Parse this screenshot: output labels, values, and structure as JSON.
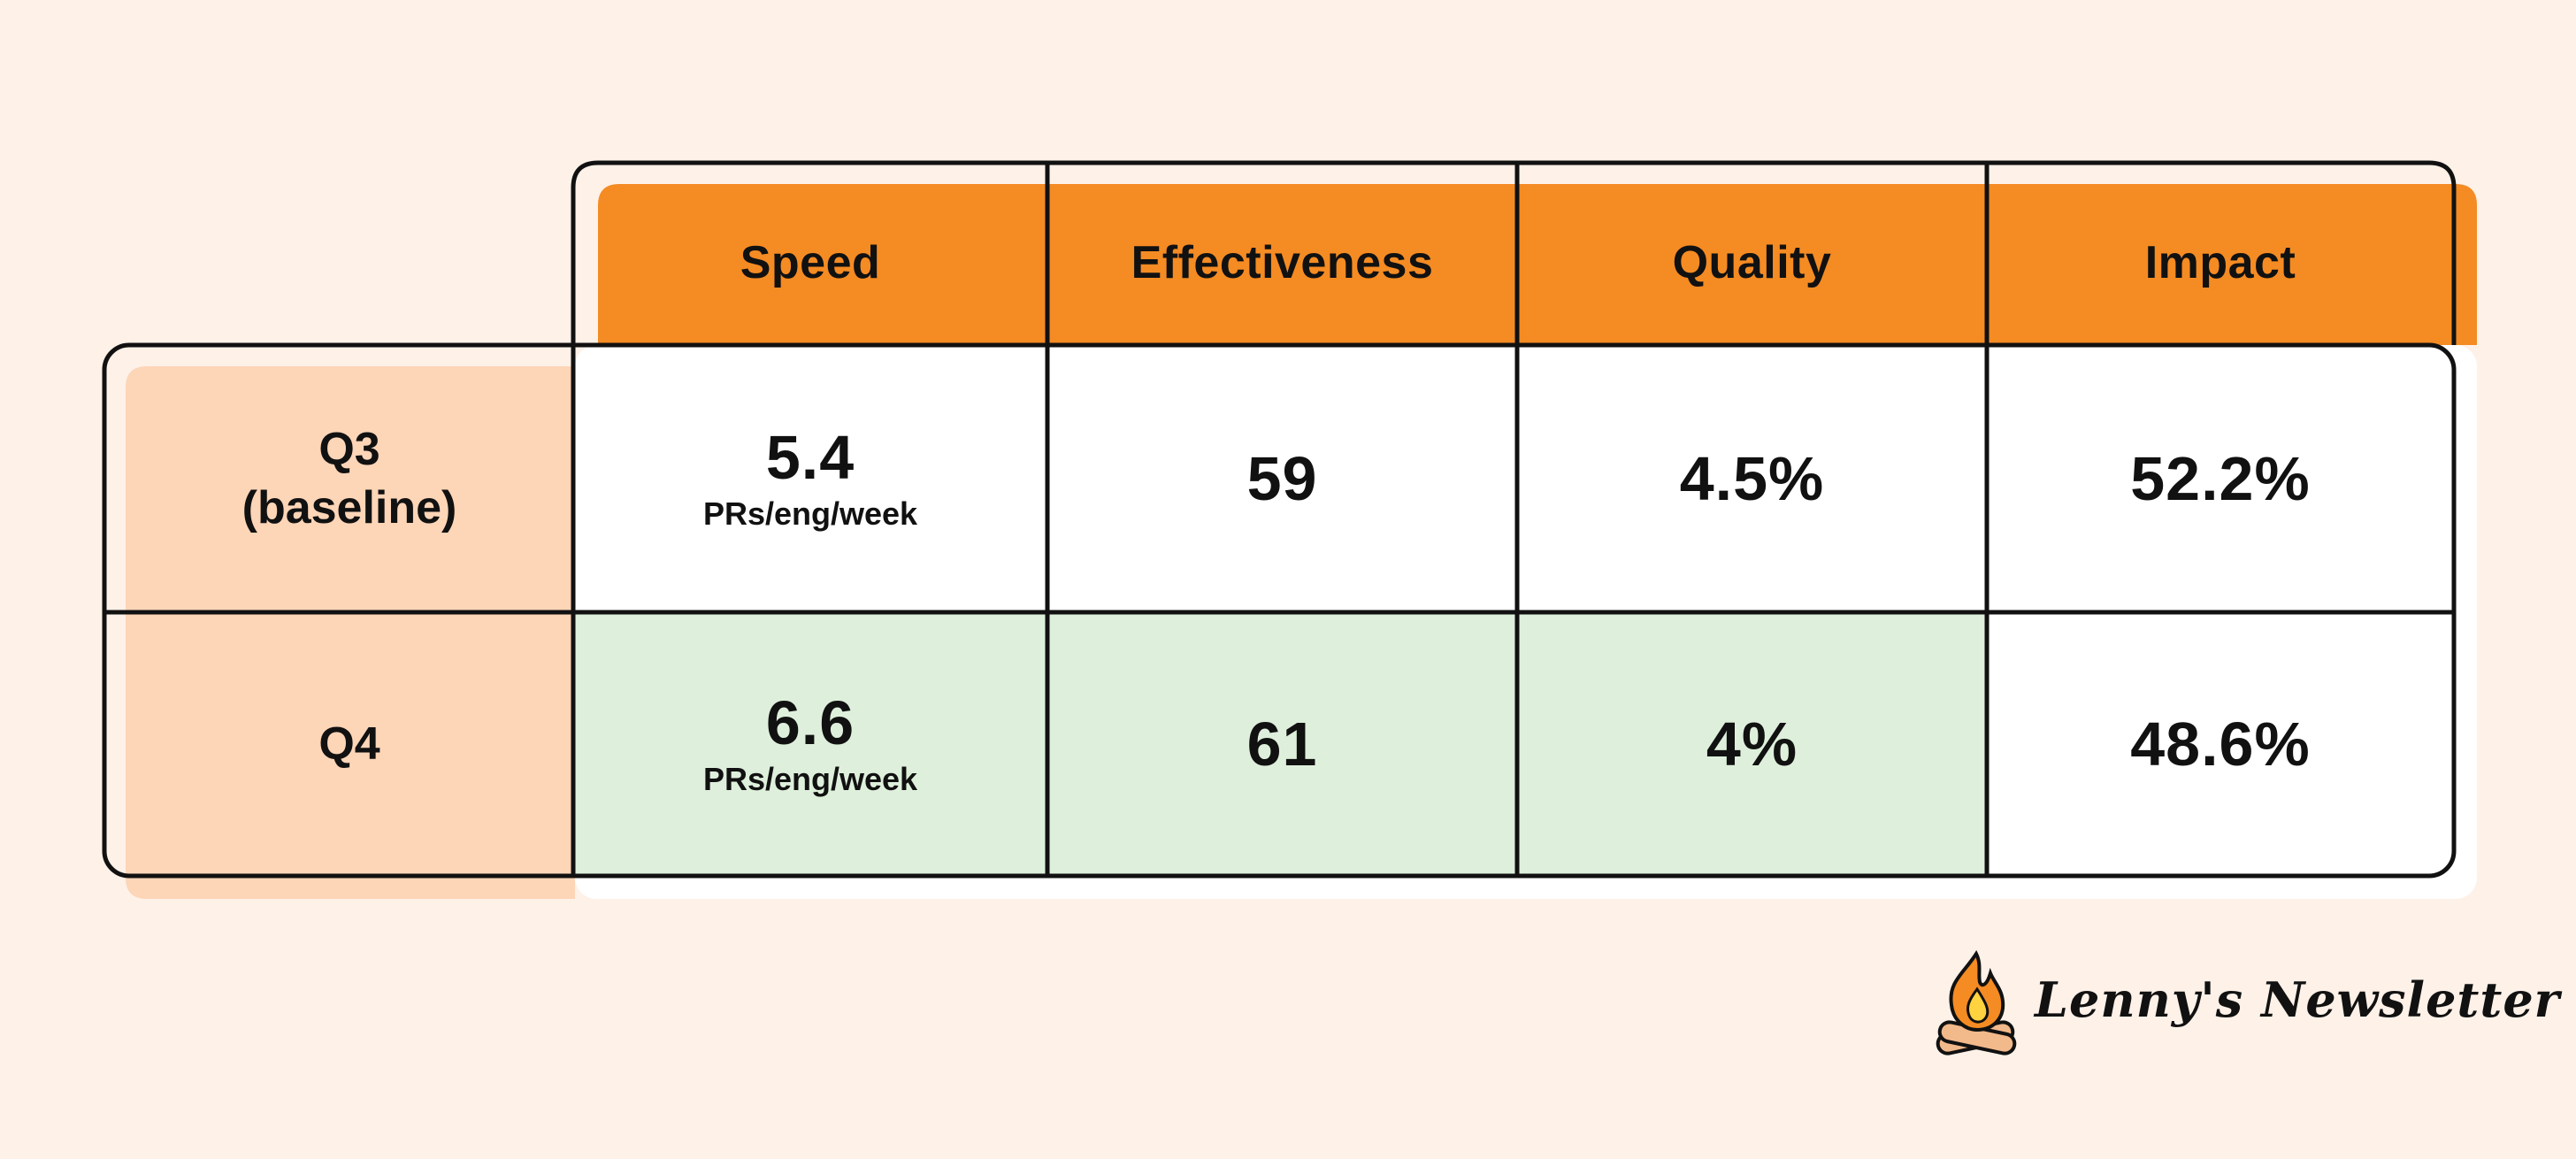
{
  "colors": {
    "background": "#fdf1e8",
    "header": "#f58b23",
    "row_header": "#fdd5b7",
    "improved": "#def0dc",
    "cell": "#ffffff",
    "border": "#111111"
  },
  "chart_data": {
    "type": "table",
    "columns": [
      "Speed",
      "Effectiveness",
      "Quality",
      "Impact"
    ],
    "rows": [
      {
        "label": "Q3\n(baseline)",
        "label_lines": [
          "Q3",
          "(baseline)"
        ],
        "cells": [
          {
            "value": "5.4",
            "unit": "PRs/eng/week",
            "highlight": false
          },
          {
            "value": "59",
            "unit": "",
            "highlight": false
          },
          {
            "value": "4.5%",
            "unit": "",
            "highlight": false
          },
          {
            "value": "52.2%",
            "unit": "",
            "highlight": false
          }
        ]
      },
      {
        "label": "Q4",
        "label_lines": [
          "Q4"
        ],
        "cells": [
          {
            "value": "6.6",
            "unit": "PRs/eng/week",
            "highlight": true
          },
          {
            "value": "61",
            "unit": "",
            "highlight": true
          },
          {
            "value": "4%",
            "unit": "",
            "highlight": true
          },
          {
            "value": "48.6%",
            "unit": "",
            "highlight": false
          }
        ]
      }
    ]
  },
  "branding": {
    "logo_text": "Lenny's Newsletter",
    "logo_icon": "campfire-icon"
  }
}
